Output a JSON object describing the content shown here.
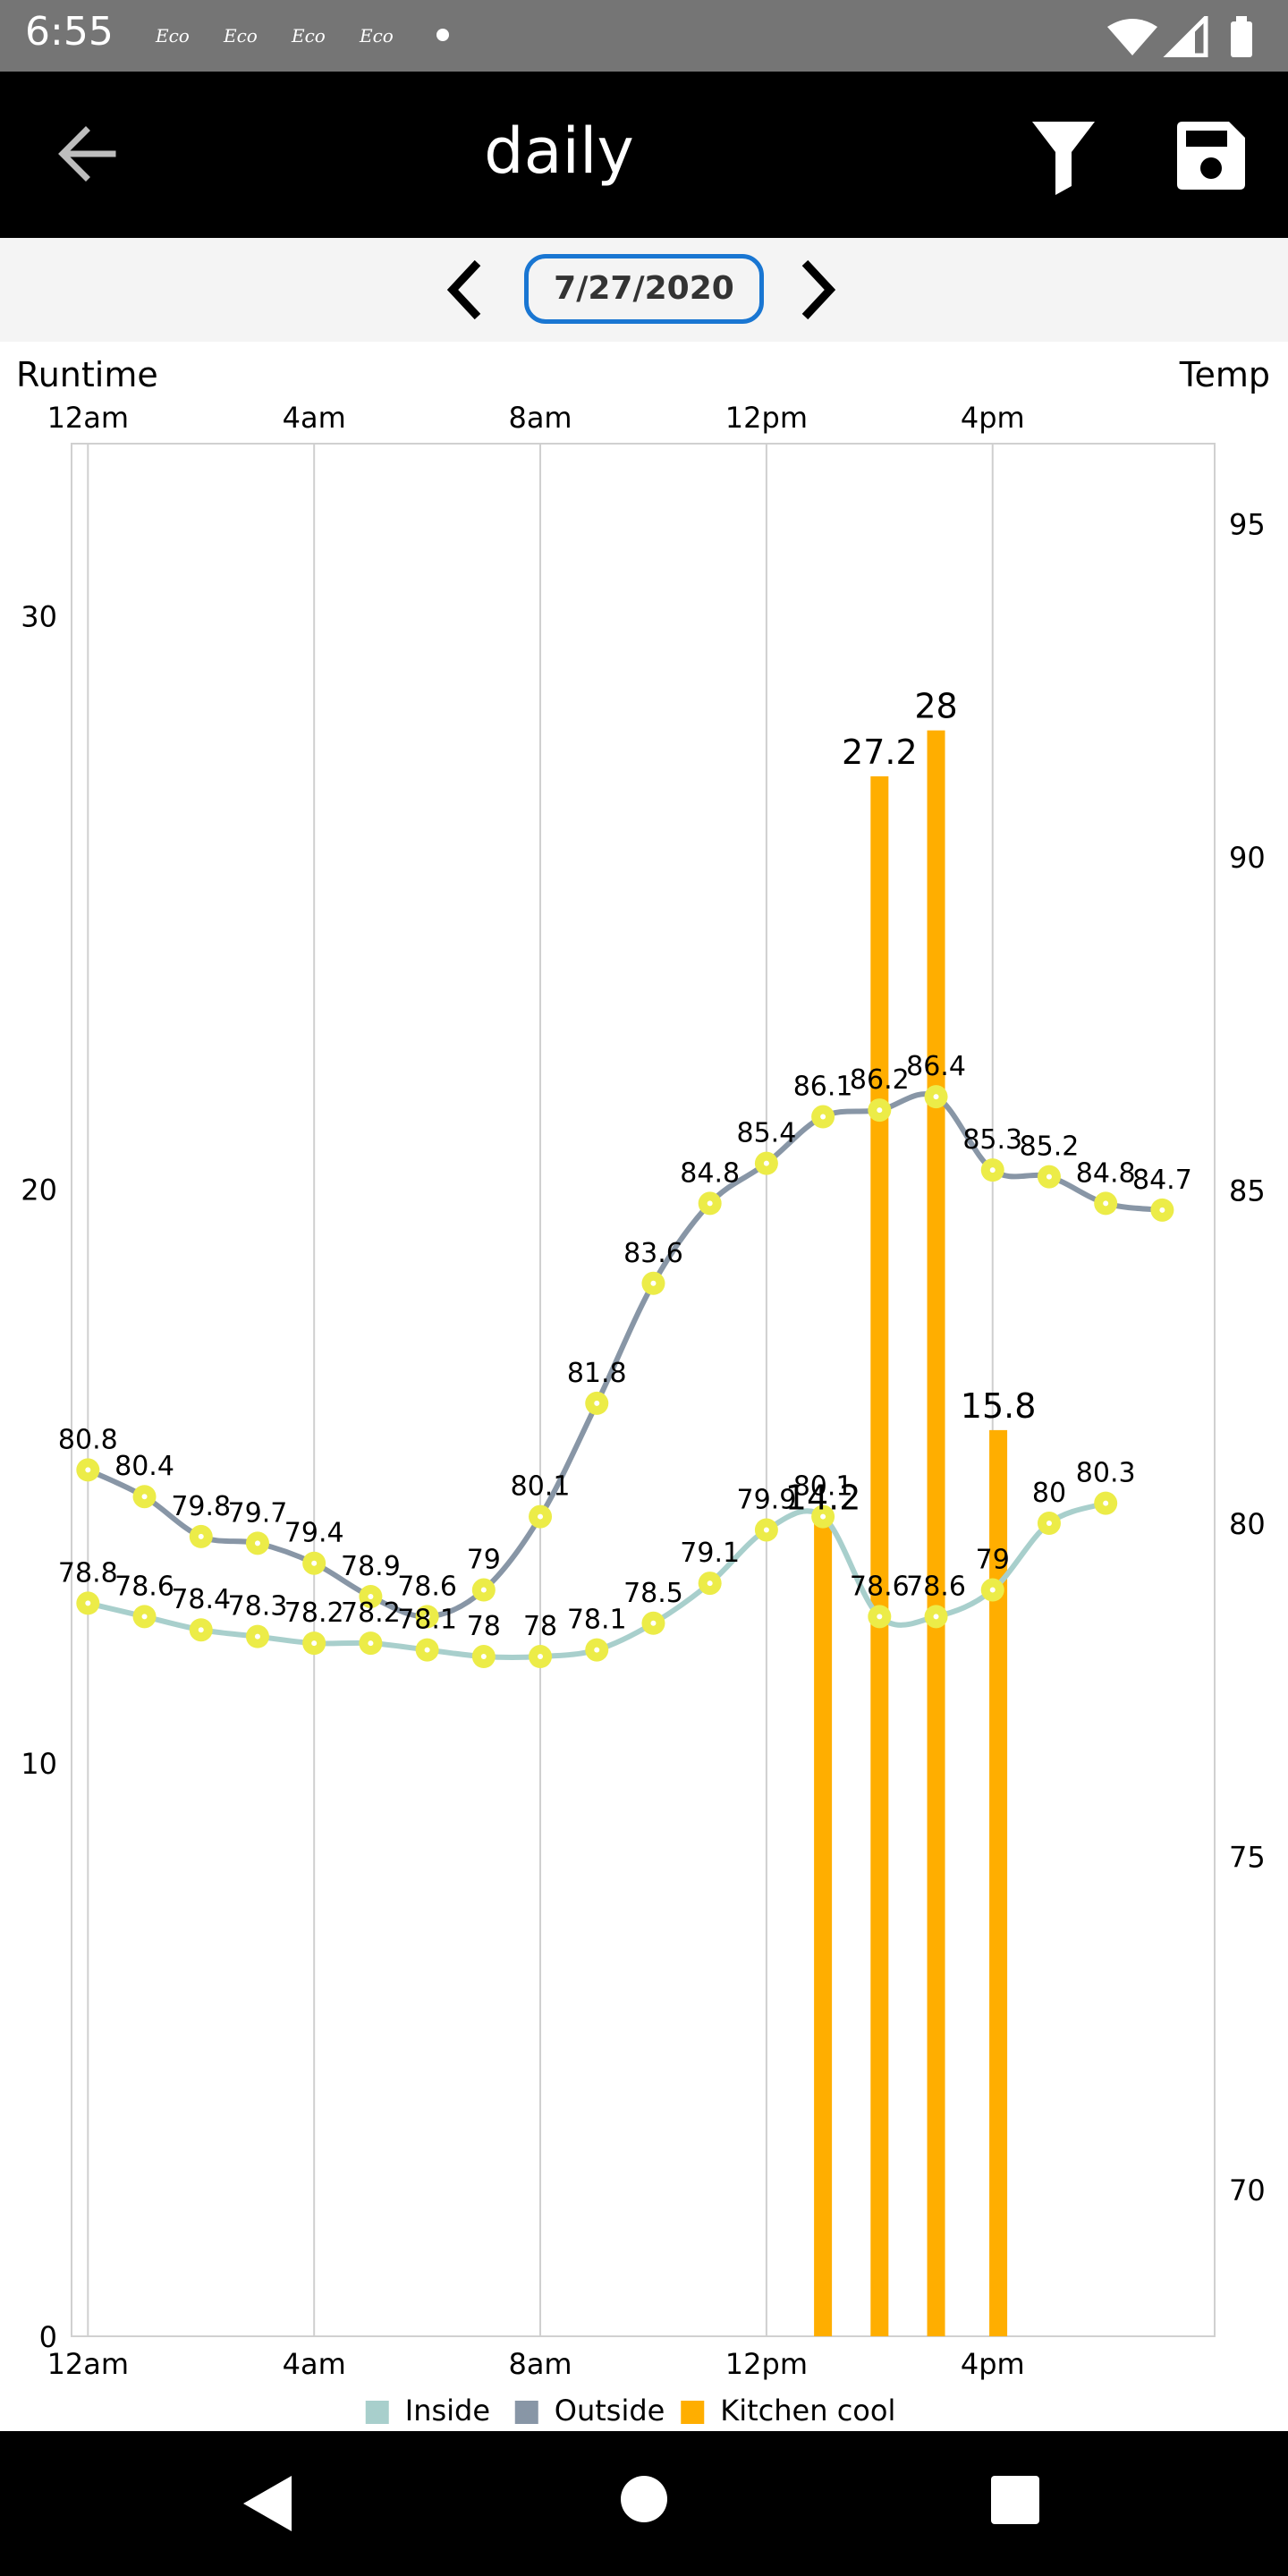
{
  "status": {
    "time": "6:55",
    "notifications": [
      "Eco",
      "Eco",
      "Eco",
      "Eco"
    ],
    "icons": [
      "wifi-icon",
      "signal-icon",
      "battery-icon"
    ]
  },
  "app_bar": {
    "title": "daily",
    "back_icon": "arrow-back-icon",
    "filter_icon": "filter-icon",
    "save_icon": "save-icon"
  },
  "date_bar": {
    "date": "7/27/2020",
    "prev_icon": "chevron-left-icon",
    "next_icon": "chevron-right-icon"
  },
  "chart_data": {
    "type": "bar+line",
    "left_axis_title": "Runtime",
    "right_axis_title": "Temp",
    "x_tick_labels": [
      "12am",
      "4am",
      "8am",
      "12pm",
      "4pm"
    ],
    "x_tick_hours": [
      0,
      4,
      8,
      12,
      16
    ],
    "left_ticks": [
      0,
      10,
      20,
      30
    ],
    "left_range": [
      0,
      33
    ],
    "right_ticks": [
      70,
      75,
      80,
      85,
      90,
      95
    ],
    "right_range": [
      67.8,
      96.2
    ],
    "x_range": [
      -0.1,
      19.5
    ],
    "legend": [
      {
        "name": "Inside",
        "color": "#a8cfcc"
      },
      {
        "name": "Outside",
        "color": "#8896a6"
      },
      {
        "name": "Kitchen cool",
        "color": "#ffae00"
      }
    ],
    "bars": {
      "name": "Kitchen cool",
      "color": "#ffae00",
      "points": [
        {
          "x": 13,
          "y": 14.2,
          "label": "14.2"
        },
        {
          "x": 14,
          "y": 27.2,
          "label": "27.2"
        },
        {
          "x": 15,
          "y": 28,
          "label": "28"
        },
        {
          "x": 16.1,
          "y": 15.8,
          "label": "15.8"
        }
      ]
    },
    "outside": {
      "name": "Outside",
      "color": "#8896a6",
      "x": [
        0,
        1,
        2,
        3,
        4,
        5,
        6,
        7,
        8,
        9,
        10,
        11,
        12,
        13,
        14,
        15,
        16,
        17,
        18,
        19
      ],
      "y": [
        80.8,
        80.4,
        79.8,
        79.7,
        79.4,
        78.9,
        78.6,
        79,
        80.1,
        81.8,
        83.6,
        84.8,
        85.4,
        86.1,
        86.2,
        86.4,
        85.3,
        85.2,
        84.8,
        84.7
      ],
      "labels": [
        "80.8",
        "80.4",
        "79.8",
        "79.7",
        "79.4",
        "78.9",
        "78.6",
        "79",
        "80.1",
        "81.8",
        "83.6",
        "84.8",
        "85.4",
        "86.1",
        "86.2",
        "86.4",
        "85.3",
        "85.2",
        "84.8",
        "84.7"
      ]
    },
    "inside": {
      "name": "Inside",
      "color": "#a8cfcc",
      "x": [
        0,
        1,
        2,
        3,
        4,
        5,
        6,
        7,
        8,
        9,
        10,
        11,
        12,
        13,
        14,
        15,
        16,
        17,
        18
      ],
      "y": [
        78.8,
        78.6,
        78.4,
        78.3,
        78.2,
        78.2,
        78.1,
        78,
        78,
        78.1,
        78.5,
        79.1,
        79.9,
        80.1,
        78.6,
        78.6,
        79,
        80,
        80.3
      ],
      "labels": [
        "78.8",
        "78.6",
        "78.4",
        "78.3",
        "78.2",
        "78.2",
        "78.1",
        "78",
        "78",
        "78.1",
        "78.5",
        "79.1",
        "79.9",
        "80.1",
        "78.6",
        "78.6",
        "79",
        "80",
        "80.3"
      ]
    },
    "marker_color": "#ecec48",
    "grid": "vertical"
  },
  "nav": {
    "back_icon": "nav-back-icon",
    "home_icon": "nav-home-icon",
    "recent_icon": "nav-recent-icon"
  }
}
